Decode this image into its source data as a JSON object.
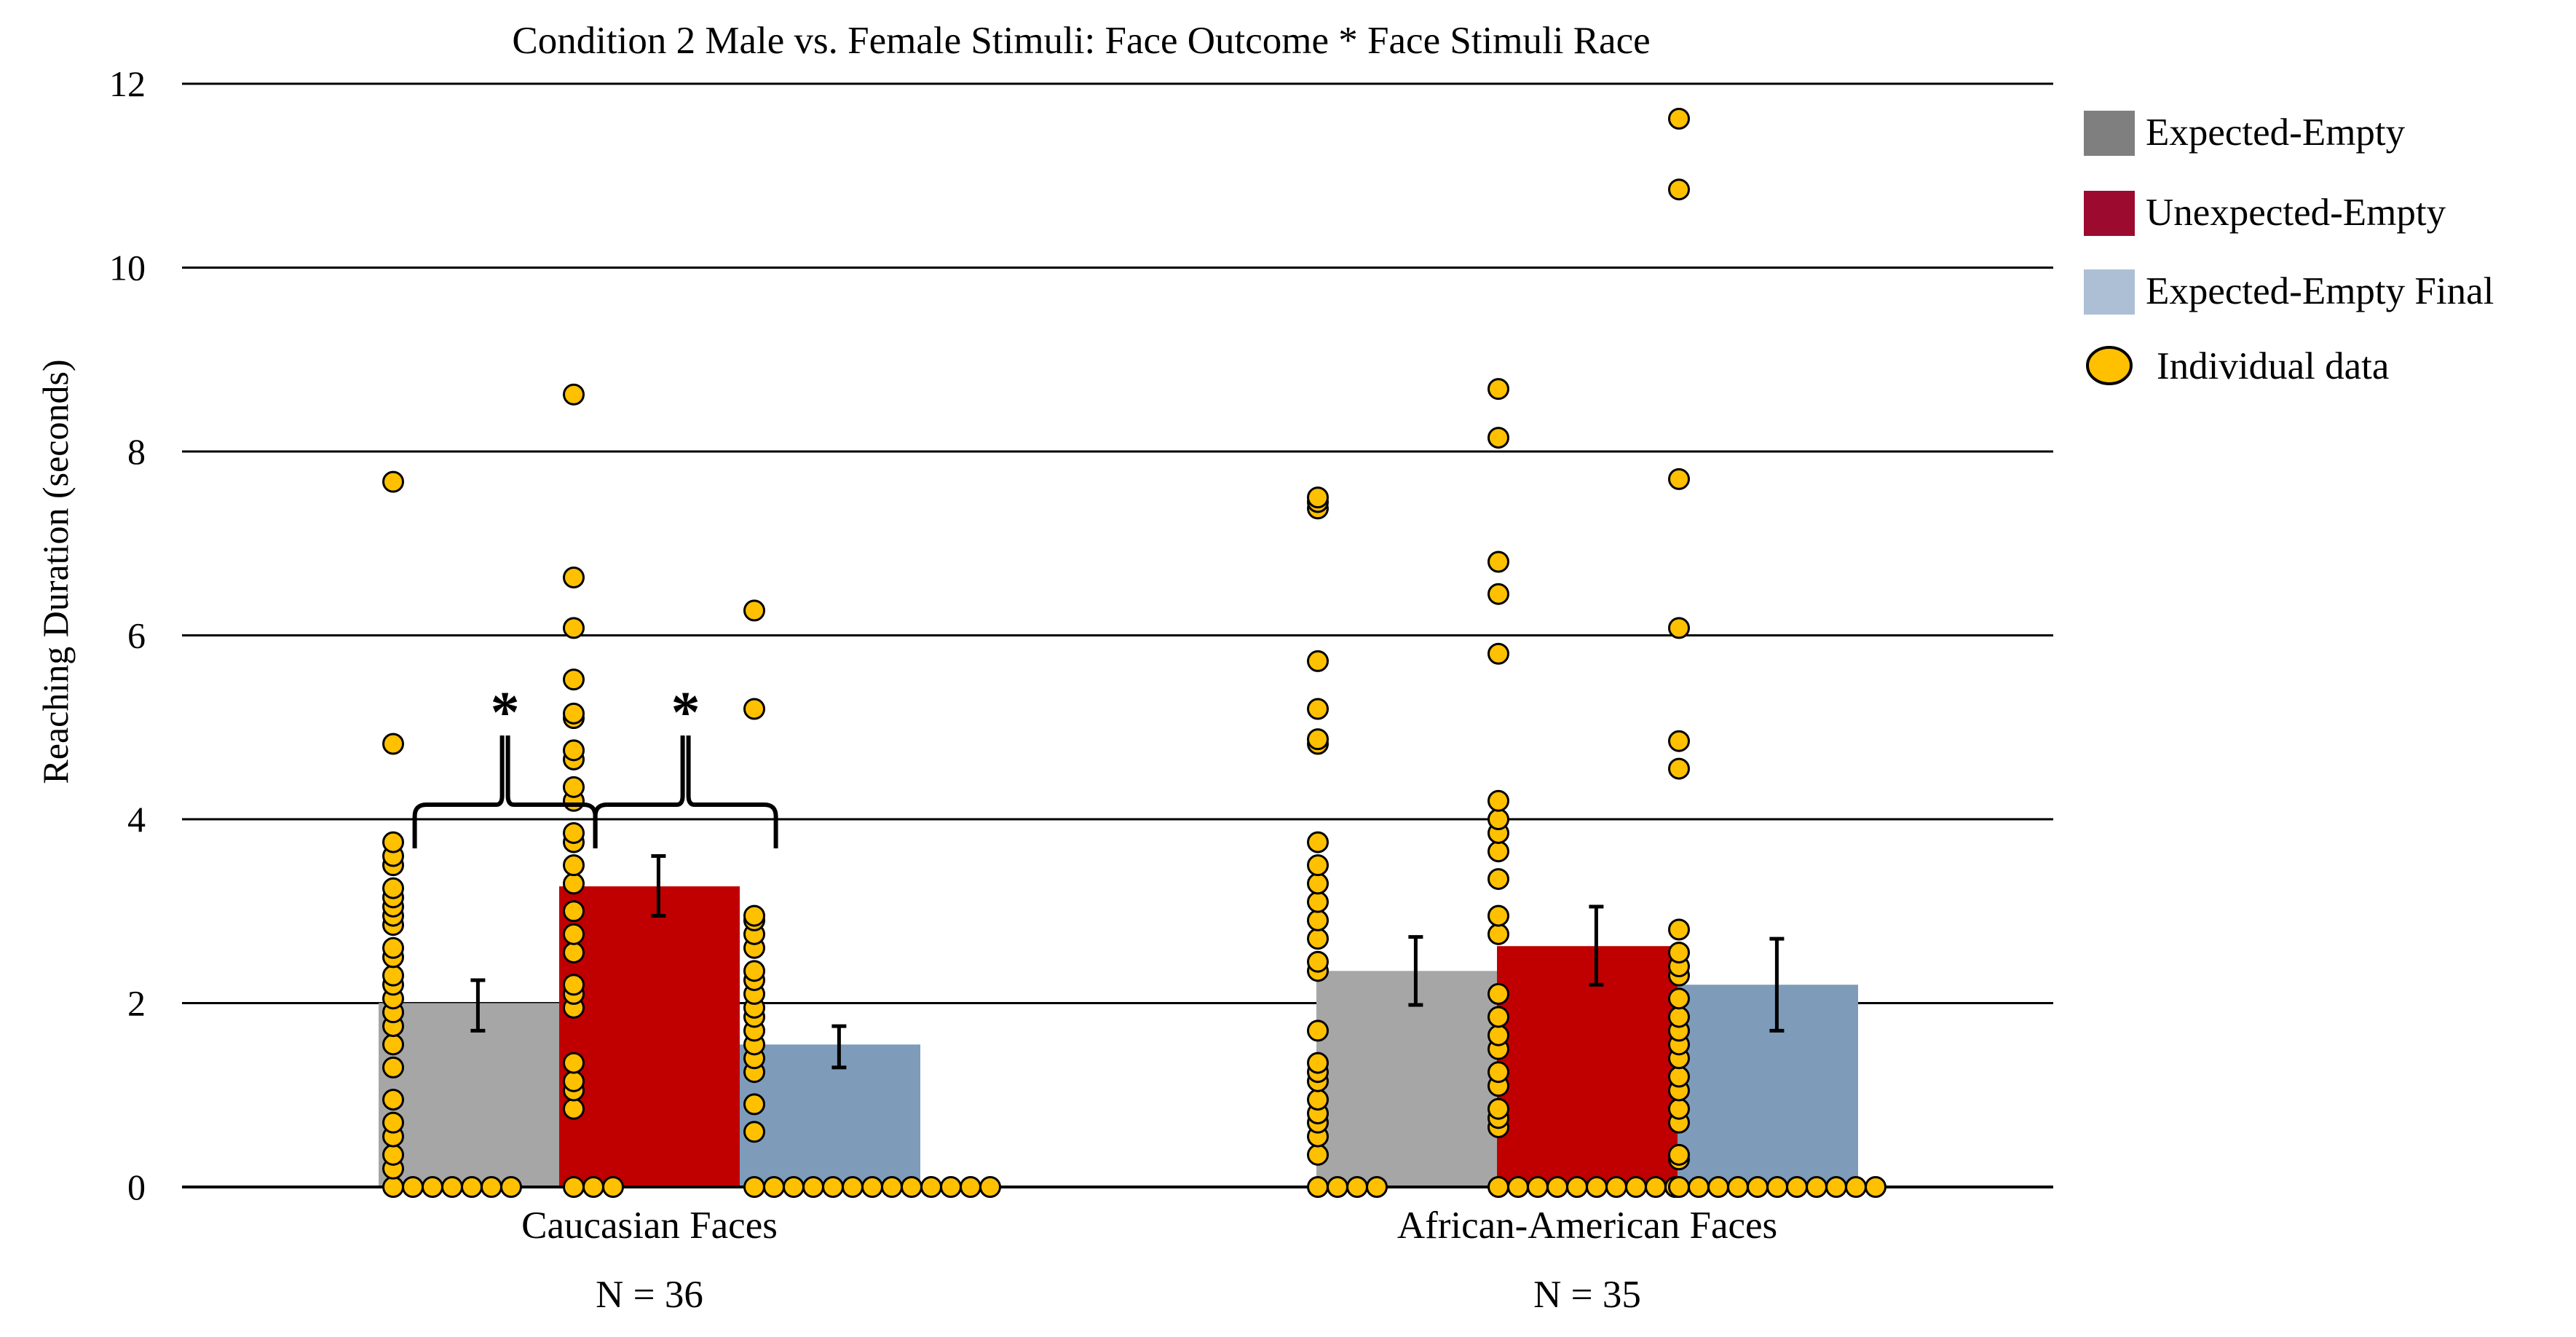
{
  "chart_data": {
    "type": "bar",
    "title": "Condition 2 Male vs. Female Stimuli: Face Outcome * Face Stimuli Race",
    "ylabel": "Reaching Duration (seconds)",
    "xlabel": "",
    "ylim": [
      0,
      12
    ],
    "yticks": [
      0,
      2,
      4,
      6,
      8,
      10,
      12
    ],
    "grid": true,
    "legend_position": "right",
    "categories": [
      "Caucasian Faces",
      "African-American Faces"
    ],
    "sample_sizes": [
      "N = 36",
      "N = 35"
    ],
    "series": [
      {
        "name": "Expected-Empty",
        "color": "#a6a6a6",
        "legend_color": "#7f7f7f",
        "values": [
          2.0,
          2.35
        ],
        "error": [
          [
            1.7,
            2.25
          ],
          [
            1.98,
            2.72
          ]
        ],
        "individual": [
          [
            0,
            0,
            0,
            0,
            0,
            0,
            0,
            0.2,
            0.35,
            0.55,
            0.7,
            0.95,
            1.3,
            1.55,
            1.75,
            1.9,
            2.05,
            2.2,
            2.3,
            2.5,
            2.6,
            2.85,
            2.95,
            3.05,
            3.15,
            3.25,
            3.5,
            3.6,
            3.75,
            4.82,
            7.67
          ],
          [
            0,
            0,
            0,
            0,
            0.35,
            0.55,
            0.7,
            0.8,
            0.95,
            1.15,
            1.25,
            1.35,
            1.7,
            2.35,
            2.45,
            2.7,
            2.9,
            3.1,
            3.3,
            3.5,
            3.75,
            4.82,
            4.87,
            5.2,
            5.72,
            7.38,
            7.45,
            7.5
          ]
        ]
      },
      {
        "name": "Unexpected-Empty",
        "color": "#c00000",
        "legend_color": "#9c0b2f",
        "values": [
          3.27,
          2.62
        ],
        "error": [
          [
            2.95,
            3.6
          ],
          [
            2.2,
            3.05
          ]
        ],
        "individual": [
          [
            0,
            0,
            0,
            0.85,
            1.05,
            1.15,
            1.35,
            1.95,
            2.1,
            2.2,
            2.55,
            2.75,
            3.0,
            3.3,
            3.5,
            3.75,
            3.85,
            4.2,
            4.35,
            4.65,
            4.75,
            5.1,
            5.15,
            5.52,
            6.08,
            6.63,
            8.62
          ],
          [
            0,
            0,
            0,
            0,
            0,
            0,
            0,
            0,
            0,
            0,
            0.65,
            0.75,
            0.85,
            1.1,
            1.25,
            1.5,
            1.65,
            1.85,
            2.1,
            2.75,
            2.95,
            3.35,
            3.65,
            3.85,
            4.0,
            4.2,
            5.8,
            6.45,
            6.8,
            8.15,
            8.68
          ]
        ]
      },
      {
        "name": "Expected-Empty Final",
        "color": "#7e9cba",
        "legend_color": "#adbfd4",
        "values": [
          1.55,
          2.2
        ],
        "error": [
          [
            1.3,
            1.75
          ],
          [
            1.7,
            2.7
          ]
        ],
        "individual": [
          [
            0,
            0,
            0,
            0,
            0,
            0,
            0,
            0,
            0,
            0,
            0,
            0,
            0,
            0.6,
            0.9,
            1.25,
            1.4,
            1.55,
            1.7,
            1.85,
            1.95,
            2.1,
            2.25,
            2.35,
            2.6,
            2.75,
            2.9,
            2.95,
            5.2,
            6.27
          ],
          [
            0,
            0,
            0,
            0,
            0,
            0,
            0,
            0,
            0,
            0,
            0,
            0.3,
            0.35,
            0.7,
            0.85,
            1.05,
            1.2,
            1.4,
            1.55,
            1.7,
            1.85,
            2.05,
            2.3,
            2.4,
            2.55,
            2.8,
            4.55,
            4.85,
            6.08,
            7.7,
            10.85,
            11.62
          ]
        ]
      }
    ],
    "individual_name": "Individual data",
    "individual_color": "#ffc000",
    "significance": [
      {
        "category": 0,
        "between": [
          0,
          1
        ],
        "label": "*"
      },
      {
        "category": 0,
        "between": [
          1,
          2
        ],
        "label": "*"
      }
    ]
  }
}
